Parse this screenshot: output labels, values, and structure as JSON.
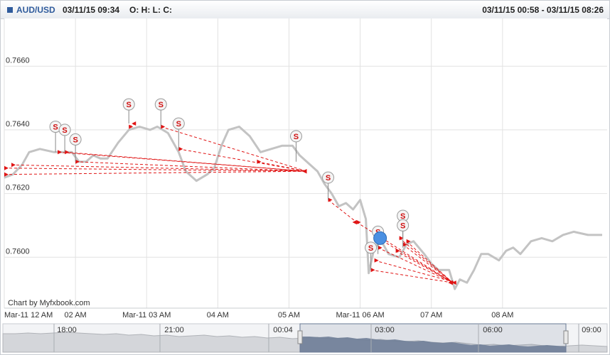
{
  "header": {
    "symbol": "AUD/USD",
    "timestamp": "03/11/15 09:34",
    "ohlc": "O: H: L: C:",
    "range": "03/11/15 00:58 - 03/11/15 08:26"
  },
  "credit": "Chart by Myfxbook.com",
  "colors": {
    "price": "#c3c3c3",
    "trade": "#e01414",
    "accent": "#2f5b9c",
    "grid": "#e2e2e2",
    "navfill": "#6b7b95"
  },
  "chart_data": {
    "type": "line",
    "title": "",
    "xlabel": "",
    "ylabel": "",
    "xlim": [
      0,
      8.47
    ],
    "ylim": [
      0.7584,
      0.7675
    ],
    "yticks": [
      "0.7660",
      "0.7640",
      "0.7620",
      "0.7600"
    ],
    "xticks": [
      {
        "x": 0.0,
        "label": "Mar-11 12 AM"
      },
      {
        "x": 1.0,
        "label": "02 AM"
      },
      {
        "x": 2.0,
        "label": "Mar-11 03 AM"
      },
      {
        "x": 3.0,
        "label": "04 AM"
      },
      {
        "x": 4.0,
        "label": "05 AM"
      },
      {
        "x": 5.0,
        "label": "Mar-11 06 AM"
      },
      {
        "x": 6.0,
        "label": "07 AM"
      },
      {
        "x": 7.0,
        "label": "08 AM"
      }
    ],
    "series": [
      {
        "values": [
          [
            0.0,
            0.7625
          ],
          [
            0.12,
            0.7626
          ],
          [
            0.25,
            0.7629
          ],
          [
            0.35,
            0.7633
          ],
          [
            0.5,
            0.7634
          ],
          [
            0.7,
            0.7633
          ],
          [
            0.85,
            0.7633
          ],
          [
            0.95,
            0.7633
          ],
          [
            1.05,
            0.763
          ],
          [
            1.15,
            0.763
          ],
          [
            1.25,
            0.7632
          ],
          [
            1.35,
            0.7631
          ],
          [
            1.45,
            0.7631
          ],
          [
            1.6,
            0.7636
          ],
          [
            1.75,
            0.764
          ],
          [
            1.9,
            0.7641
          ],
          [
            2.05,
            0.764
          ],
          [
            2.15,
            0.7641
          ],
          [
            2.3,
            0.7639
          ],
          [
            2.45,
            0.7633
          ],
          [
            2.55,
            0.7627
          ],
          [
            2.7,
            0.7624
          ],
          [
            2.85,
            0.7626
          ],
          [
            2.95,
            0.7628
          ],
          [
            3.05,
            0.7635
          ],
          [
            3.15,
            0.764
          ],
          [
            3.3,
            0.7641
          ],
          [
            3.45,
            0.7638
          ],
          [
            3.6,
            0.7633
          ],
          [
            3.75,
            0.7634
          ],
          [
            3.9,
            0.7635
          ],
          [
            4.05,
            0.7635
          ],
          [
            4.15,
            0.7632
          ],
          [
            4.3,
            0.7629
          ],
          [
            4.4,
            0.7627
          ],
          [
            4.5,
            0.7623
          ],
          [
            4.6,
            0.762
          ],
          [
            4.7,
            0.7616
          ],
          [
            4.8,
            0.7617
          ],
          [
            4.9,
            0.7615
          ],
          [
            5.0,
            0.7618
          ],
          [
            5.08,
            0.7612
          ],
          [
            5.12,
            0.7595
          ],
          [
            5.2,
            0.7603
          ],
          [
            5.3,
            0.7605
          ],
          [
            5.4,
            0.7601
          ],
          [
            5.55,
            0.76
          ],
          [
            5.65,
            0.7604
          ],
          [
            5.75,
            0.7605
          ],
          [
            5.9,
            0.7601
          ],
          [
            6.0,
            0.7598
          ],
          [
            6.1,
            0.7596
          ],
          [
            6.25,
            0.7596
          ],
          [
            6.33,
            0.759
          ],
          [
            6.4,
            0.7593
          ],
          [
            6.5,
            0.7592
          ],
          [
            6.6,
            0.7596
          ],
          [
            6.7,
            0.7601
          ],
          [
            6.8,
            0.7601
          ],
          [
            6.95,
            0.7599
          ],
          [
            7.05,
            0.7602
          ],
          [
            7.15,
            0.7603
          ],
          [
            7.25,
            0.7601
          ],
          [
            7.4,
            0.7605
          ],
          [
            7.55,
            0.7606
          ],
          [
            7.7,
            0.7605
          ],
          [
            7.85,
            0.7607
          ],
          [
            8.0,
            0.7608
          ],
          [
            8.2,
            0.7607
          ],
          [
            8.4,
            0.7607
          ]
        ]
      }
    ],
    "trades": [
      {
        "x1": 0.0,
        "y1": 0.7626,
        "x2": 4.25,
        "y2": 0.7627
      },
      {
        "x1": 0.0,
        "y1": 0.7628,
        "x2": 4.25,
        "y2": 0.7627
      },
      {
        "x1": 0.1,
        "y1": 0.7629,
        "x2": 4.25,
        "y2": 0.7627
      },
      {
        "x1": 0.75,
        "y1": 0.7633,
        "x2": 4.25,
        "y2": 0.7627
      },
      {
        "x1": 0.85,
        "y1": 0.7633,
        "x2": 4.25,
        "y2": 0.7627
      },
      {
        "x1": 1.0,
        "y1": 0.763,
        "x2": 4.25,
        "y2": 0.7627
      },
      {
        "x1": 2.2,
        "y1": 0.7641,
        "x2": 4.25,
        "y2": 0.7627
      },
      {
        "x1": 2.45,
        "y1": 0.7634,
        "x2": 4.25,
        "y2": 0.7627
      },
      {
        "x1": 3.55,
        "y1": 0.763,
        "x2": 4.25,
        "y2": 0.7627
      },
      {
        "x1": 1.75,
        "y1": 0.7641,
        "x2": 1.85,
        "y2": 0.7642
      },
      {
        "x1": 4.55,
        "y1": 0.7618,
        "x2": 4.95,
        "y2": 0.7611
      },
      {
        "x1": 4.95,
        "y1": 0.7611,
        "x2": 6.3,
        "y2": 0.7592
      },
      {
        "x1": 5.15,
        "y1": 0.7596,
        "x2": 6.3,
        "y2": 0.7592
      },
      {
        "x1": 5.2,
        "y1": 0.7599,
        "x2": 6.35,
        "y2": 0.7592
      },
      {
        "x1": 5.25,
        "y1": 0.7603,
        "x2": 6.3,
        "y2": 0.7592
      },
      {
        "x1": 5.25,
        "y1": 0.7606,
        "x2": 6.3,
        "y2": 0.7592
      },
      {
        "x1": 5.5,
        "y1": 0.7602,
        "x2": 6.3,
        "y2": 0.7592
      },
      {
        "x1": 5.55,
        "y1": 0.7606,
        "x2": 6.3,
        "y2": 0.7592
      },
      {
        "x1": 5.6,
        "y1": 0.7604,
        "x2": 6.3,
        "y2": 0.7592
      },
      {
        "x1": 5.65,
        "y1": 0.7605,
        "x2": 6.3,
        "y2": 0.7592
      }
    ],
    "signals": [
      {
        "x": 0.72,
        "y": 0.7641,
        "stem": 0.7633
      },
      {
        "x": 0.85,
        "y": 0.764,
        "stem": 0.7633
      },
      {
        "x": 1.0,
        "y": 0.7637,
        "stem": 0.763
      },
      {
        "x": 1.75,
        "y": 0.7648,
        "stem": 0.7642
      },
      {
        "x": 2.2,
        "y": 0.7648,
        "stem": 0.7641
      },
      {
        "x": 2.45,
        "y": 0.7642,
        "stem": 0.7634
      },
      {
        "x": 4.1,
        "y": 0.7638,
        "stem": 0.763
      },
      {
        "x": 4.55,
        "y": 0.7625,
        "stem": 0.7618
      },
      {
        "x": 5.15,
        "y": 0.7603,
        "stem": 0.7596
      },
      {
        "x": 5.25,
        "y": 0.7608,
        "stem": 0.7601
      },
      {
        "x": 5.6,
        "y": 0.7613,
        "stem": 0.7606
      },
      {
        "x": 5.6,
        "y": 0.761,
        "stem": 0.7603
      }
    ],
    "highlight_signal": {
      "x": 5.28,
      "y": 0.7606
    }
  },
  "navigator": {
    "labels": [
      "18:00",
      "21:00",
      "00:04",
      "03:00",
      "06:00",
      "09:00"
    ]
  }
}
